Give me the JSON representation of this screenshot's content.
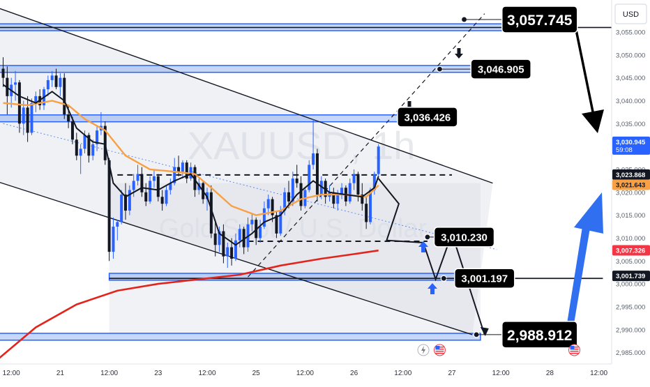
{
  "chart_data": {
    "type": "candlestick",
    "symbol_watermark": "XAUUSD, 1h",
    "instrument_watermark": "Gold Spot / U.S. Dollar",
    "currency": "USD",
    "ylim": [
      2982.5,
      3062.0
    ],
    "y_ticks": [
      2985,
      2990,
      2995,
      3000,
      3005,
      3010,
      3015,
      3020,
      3025,
      3030,
      3035,
      3040,
      3045,
      3050,
      3055
    ],
    "y_tick_labels": [
      "2,985.000",
      "2,990.000",
      "2,995.000",
      "3,000.000",
      "3,005.000",
      "3,010.000",
      "3,015.000",
      "3,020.000",
      "3,025.000",
      "3,030.000",
      "3,035.000",
      "3,040.000",
      "3,045.000",
      "3,050.000",
      "3,055.000"
    ],
    "x_labels": [
      {
        "t": 2,
        "label": "12:00"
      },
      {
        "t": 14,
        "label": "21"
      },
      {
        "t": 26,
        "label": "12:00"
      },
      {
        "t": 38,
        "label": "23"
      },
      {
        "t": 50,
        "label": "12:00"
      },
      {
        "t": 62,
        "label": "25"
      },
      {
        "t": 74,
        "label": "12:00"
      },
      {
        "t": 86,
        "label": "26"
      },
      {
        "t": 98,
        "label": "12:00"
      },
      {
        "t": 110,
        "label": "27"
      },
      {
        "t": 122,
        "label": "12:00"
      },
      {
        "t": 134,
        "label": "28"
      },
      {
        "t": 146,
        "label": "12:00"
      }
    ],
    "candles": [
      [
        0,
        3047.0,
        3049.5,
        3043.0,
        3045.0
      ],
      [
        1,
        3045.0,
        3047.5,
        3037.0,
        3041.0
      ],
      [
        2,
        3041.0,
        3045.0,
        3038.5,
        3043.5
      ],
      [
        3,
        3043.5,
        3046.5,
        3040.0,
        3044.0
      ],
      [
        4,
        3044.0,
        3044.5,
        3033.0,
        3035.0
      ],
      [
        5,
        3035.0,
        3040.0,
        3032.5,
        3038.5
      ],
      [
        6,
        3038.5,
        3041.0,
        3031.0,
        3033.0
      ],
      [
        7,
        3033.0,
        3040.5,
        3032.5,
        3039.5
      ],
      [
        8,
        3039.5,
        3042.0,
        3037.5,
        3041.0
      ],
      [
        9,
        3041.0,
        3042.5,
        3038.0,
        3039.0
      ],
      [
        10,
        3039.0,
        3043.0,
        3038.0,
        3042.5
      ],
      [
        11,
        3042.5,
        3045.5,
        3041.0,
        3044.5
      ],
      [
        12,
        3044.5,
        3046.5,
        3043.0,
        3045.5
      ],
      [
        13,
        3045.5,
        3047.0,
        3042.5,
        3043.0
      ],
      [
        14,
        3043.0,
        3046.0,
        3041.0,
        3045.0
      ],
      [
        15,
        3045.0,
        3046.0,
        3036.0,
        3037.0
      ],
      [
        16,
        3037.0,
        3039.0,
        3034.0,
        3035.5
      ],
      [
        17,
        3035.5,
        3036.5,
        3030.5,
        3031.5
      ],
      [
        18,
        3031.5,
        3033.0,
        3027.0,
        3028.0
      ],
      [
        19,
        3028.0,
        3030.5,
        3024.0,
        3029.5
      ],
      [
        20,
        3029.5,
        3033.5,
        3028.5,
        3032.5
      ],
      [
        21,
        3032.5,
        3033.0,
        3026.5,
        3028.0
      ],
      [
        22,
        3028.0,
        3031.5,
        3027.0,
        3030.5
      ],
      [
        23,
        3030.5,
        3034.5,
        3029.0,
        3033.5
      ],
      [
        24,
        3033.5,
        3037.5,
        3032.5,
        3034.5
      ],
      [
        25,
        3034.5,
        3035.5,
        3026.0,
        3027.0
      ],
      [
        26,
        3027.0,
        3027.5,
        3005.0,
        3007.0
      ],
      [
        27,
        3007.0,
        3014.5,
        3005.5,
        3012.5
      ],
      [
        28,
        3012.5,
        3014.0,
        3009.5,
        3013.5
      ],
      [
        29,
        3013.5,
        3020.5,
        3013.0,
        3019.5
      ],
      [
        30,
        3019.5,
        3022.0,
        3014.0,
        3016.0
      ],
      [
        31,
        3016.0,
        3021.5,
        3015.0,
        3020.5
      ],
      [
        32,
        3020.5,
        3024.0,
        3019.0,
        3022.5
      ],
      [
        33,
        3022.5,
        3026.0,
        3021.5,
        3024.0
      ],
      [
        34,
        3024.0,
        3025.5,
        3019.0,
        3020.0
      ],
      [
        35,
        3020.0,
        3022.0,
        3017.0,
        3018.0
      ],
      [
        36,
        3018.0,
        3023.5,
        3017.5,
        3022.5
      ],
      [
        37,
        3022.5,
        3025.0,
        3021.0,
        3023.5
      ],
      [
        38,
        3023.5,
        3024.0,
        3018.0,
        3019.0
      ],
      [
        39,
        3019.0,
        3020.5,
        3016.0,
        3017.5
      ],
      [
        40,
        3017.5,
        3021.5,
        3017.0,
        3020.5
      ],
      [
        41,
        3020.5,
        3023.0,
        3019.5,
        3022.0
      ],
      [
        42,
        3022.0,
        3027.5,
        3021.5,
        3025.5
      ],
      [
        43,
        3025.5,
        3028.0,
        3023.5,
        3024.5
      ],
      [
        44,
        3024.5,
        3027.0,
        3023.0,
        3026.5
      ],
      [
        45,
        3026.5,
        3027.0,
        3022.0,
        3023.0
      ],
      [
        46,
        3023.0,
        3026.5,
        3022.5,
        3025.5
      ],
      [
        47,
        3025.5,
        3026.0,
        3019.0,
        3020.5
      ],
      [
        48,
        3020.5,
        3023.0,
        3019.5,
        3022.0
      ],
      [
        49,
        3022.0,
        3022.5,
        3017.5,
        3018.5
      ],
      [
        50,
        3018.5,
        3021.0,
        3016.0,
        3020.0
      ],
      [
        51,
        3020.0,
        3021.5,
        3010.0,
        3011.0
      ],
      [
        52,
        3011.0,
        3014.0,
        3006.0,
        3008.5
      ],
      [
        53,
        3008.5,
        3012.5,
        3007.0,
        3011.5
      ],
      [
        54,
        3011.5,
        3013.0,
        3004.5,
        3006.0
      ],
      [
        55,
        3006.0,
        3009.0,
        3003.5,
        3008.0
      ],
      [
        56,
        3008.0,
        3010.0,
        3004.0,
        3005.5
      ],
      [
        57,
        3005.5,
        3011.0,
        3005.0,
        3009.5
      ],
      [
        58,
        3009.5,
        3013.0,
        3008.0,
        3012.0
      ],
      [
        59,
        3012.0,
        3012.5,
        3006.5,
        3008.0
      ],
      [
        60,
        3008.0,
        3014.5,
        3007.0,
        3013.0
      ],
      [
        61,
        3013.0,
        3015.5,
        3011.5,
        3014.0
      ],
      [
        62,
        3014.0,
        3014.5,
        3008.5,
        3010.0
      ],
      [
        63,
        3010.0,
        3014.0,
        3009.0,
        3012.5
      ],
      [
        64,
        3012.5,
        3018.0,
        3012.0,
        3016.5
      ],
      [
        65,
        3016.5,
        3019.5,
        3015.0,
        3018.5
      ],
      [
        66,
        3018.5,
        3019.0,
        3013.5,
        3015.0
      ],
      [
        67,
        3015.0,
        3016.0,
        3010.0,
        3011.0
      ],
      [
        68,
        3011.0,
        3017.0,
        3010.5,
        3016.0
      ],
      [
        69,
        3016.0,
        3021.0,
        3015.0,
        3020.0
      ],
      [
        70,
        3020.0,
        3022.5,
        3016.5,
        3018.0
      ],
      [
        71,
        3018.0,
        3024.5,
        3017.0,
        3023.0
      ],
      [
        72,
        3023.0,
        3026.0,
        3021.0,
        3022.0
      ],
      [
        73,
        3022.0,
        3023.5,
        3016.0,
        3017.0
      ],
      [
        74,
        3017.0,
        3021.0,
        3016.5,
        3020.5
      ],
      [
        75,
        3020.5,
        3027.0,
        3020.0,
        3026.0
      ],
      [
        76,
        3026.0,
        3036.0,
        3025.0,
        3028.5
      ],
      [
        77,
        3028.5,
        3029.5,
        3018.0,
        3019.5
      ],
      [
        78,
        3019.5,
        3023.5,
        3018.5,
        3022.5
      ],
      [
        79,
        3022.5,
        3023.0,
        3017.5,
        3019.0
      ],
      [
        80,
        3019.0,
        3021.5,
        3018.0,
        3020.0
      ],
      [
        81,
        3020.0,
        3021.0,
        3016.5,
        3017.5
      ],
      [
        82,
        3017.5,
        3020.5,
        3016.0,
        3019.5
      ],
      [
        83,
        3019.5,
        3022.0,
        3018.5,
        3021.0
      ],
      [
        84,
        3021.0,
        3021.5,
        3017.0,
        3018.0
      ],
      [
        85,
        3018.0,
        3023.0,
        3017.5,
        3022.0
      ],
      [
        86,
        3022.0,
        3025.0,
        3020.5,
        3024.0
      ],
      [
        87,
        3024.0,
        3024.5,
        3018.0,
        3019.5
      ],
      [
        88,
        3019.5,
        3022.0,
        3016.0,
        3017.5
      ],
      [
        89,
        3017.5,
        3019.0,
        3012.0,
        3013.5
      ],
      [
        90,
        3013.5,
        3021.0,
        3013.0,
        3020.5
      ],
      [
        91,
        3020.5,
        3024.5,
        3019.5,
        3024.0
      ],
      [
        92,
        3024.0,
        3030.5,
        3023.5,
        3030.0
      ]
    ],
    "overlays": {
      "ema_fast": [
        [
          0,
          3043.5
        ],
        [
          4,
          3041.0
        ],
        [
          8,
          3039.5
        ],
        [
          12,
          3042.0
        ],
        [
          15,
          3040.0
        ],
        [
          18,
          3034.0
        ],
        [
          22,
          3031.0
        ],
        [
          25,
          3030.5
        ],
        [
          27,
          3022.0
        ],
        [
          30,
          3019.0
        ],
        [
          34,
          3021.0
        ],
        [
          38,
          3020.5
        ],
        [
          42,
          3022.5
        ],
        [
          46,
          3024.0
        ],
        [
          50,
          3019.0
        ],
        [
          53,
          3011.0
        ],
        [
          57,
          3008.5
        ],
        [
          61,
          3011.0
        ],
        [
          64,
          3013.5
        ],
        [
          68,
          3015.0
        ],
        [
          72,
          3019.5
        ],
        [
          76,
          3022.5
        ],
        [
          80,
          3020.0
        ],
        [
          84,
          3019.5
        ],
        [
          88,
          3019.0
        ],
        [
          91,
          3021.0
        ],
        [
          92,
          3023.5
        ]
      ],
      "ema_slow": [
        [
          0,
          3039.5
        ],
        [
          6,
          3039.0
        ],
        [
          12,
          3040.0
        ],
        [
          16,
          3039.0
        ],
        [
          20,
          3036.0
        ],
        [
          25,
          3033.5
        ],
        [
          30,
          3028.0
        ],
        [
          36,
          3025.0
        ],
        [
          42,
          3024.5
        ],
        [
          47,
          3024.0
        ],
        [
          51,
          3021.0
        ],
        [
          56,
          3017.0
        ],
        [
          62,
          3015.0
        ],
        [
          68,
          3016.0
        ],
        [
          73,
          3018.5
        ],
        [
          78,
          3019.5
        ],
        [
          84,
          3019.5
        ],
        [
          89,
          3019.0
        ],
        [
          92,
          3021.5
        ]
      ],
      "sma_long": [
        [
          -2,
          2983.0
        ],
        [
          8,
          2990.5
        ],
        [
          18,
          2995.5
        ],
        [
          28,
          2998.5
        ],
        [
          38,
          3000.0
        ],
        [
          48,
          3001.0
        ],
        [
          58,
          3002.0
        ],
        [
          68,
          3004.0
        ],
        [
          78,
          3005.5
        ],
        [
          86,
          3006.5
        ],
        [
          92,
          3007.3
        ]
      ],
      "channel_upper": [
        [
          -2,
          3060.5
        ],
        [
          120,
          3022.0
        ]
      ],
      "channel_lower": [
        [
          -2,
          3022.5
        ],
        [
          115,
          2988.9
        ]
      ],
      "dotted_mid": [
        [
          0,
          3035.0
        ],
        [
          121,
          3007.5
        ]
      ],
      "diagonal_dashed": [
        [
          60,
          3001.5
        ],
        [
          118,
          3059.0
        ]
      ],
      "projection_zigzag": [
        [
          92,
          3023.0
        ],
        [
          97,
          3017.5
        ],
        [
          94,
          3009.5
        ],
        [
          103,
          3009.0
        ],
        [
          106,
          3001.0
        ],
        [
          110,
          3011.0
        ],
        [
          118,
          2988.9
        ]
      ],
      "dashed_level_high": {
        "value": 3023.8,
        "from": 28,
        "to": 110
      },
      "dashed_level_low": {
        "value": 3009.3,
        "from": 60,
        "to": 104
      },
      "solid_level": {
        "value": 3001.2,
        "from": 26,
        "to": 147
      }
    },
    "zones": [
      {
        "top": 3056.8,
        "bottom": 3055.3,
        "from": -2,
        "to": 140
      },
      {
        "top": 3047.7,
        "bottom": 3046.2,
        "from": -2,
        "to": 128
      },
      {
        "top": 3036.9,
        "bottom": 3035.4,
        "from": -2,
        "to": 111
      },
      {
        "top": 3002.3,
        "bottom": 3000.8,
        "from": 26,
        "to": 117
      },
      {
        "top": 2989.2,
        "bottom": 2987.7,
        "from": -2,
        "to": 117
      }
    ],
    "shaded_box": {
      "from": 26,
      "to": 117,
      "top": 3022.0,
      "bottom": 2989.0
    },
    "callouts": [
      {
        "label": "3,057.745",
        "value": 3057.745,
        "t": 131.5,
        "size": "large",
        "dot_t": 113
      },
      {
        "label": "3,046.905",
        "value": 3046.905,
        "t": 122,
        "size": "small",
        "dot_t": 107
      },
      {
        "label": "3,036.426",
        "value": 3036.426,
        "t": 104,
        "size": "small",
        "dot_t": 98
      },
      {
        "label": "3,010.230",
        "value": 3010.23,
        "t": 113,
        "size": "small",
        "dot_t": 104
      },
      {
        "label": "3,001.197",
        "value": 3001.197,
        "t": 118,
        "size": "small",
        "dot_t": 108
      },
      {
        "label": "2,988.912",
        "value": 2988.912,
        "t": 131.5,
        "size": "large",
        "dot_t": 116
      }
    ],
    "price_tags": [
      {
        "value": 3030.945,
        "label": "3,030.945",
        "sub": "59:08",
        "bg": "#2962ff",
        "fg": "#ffffff"
      },
      {
        "value": 3023.868,
        "label": "3,023.868",
        "sub": "",
        "bg": "#131722",
        "fg": "#ffffff"
      },
      {
        "value": 3021.643,
        "label": "3,021.643",
        "sub": "",
        "bg": "#f7a044",
        "fg": "#131722"
      },
      {
        "value": 3007.326,
        "label": "3,007.326",
        "sub": "",
        "bg": "#f23645",
        "fg": "#ffffff"
      },
      {
        "value": 3001.739,
        "label": "3,001.739",
        "sub": "",
        "bg": "#131722",
        "fg": "#ffffff"
      }
    ],
    "event_markers_t": [
      103,
      107,
      140
    ],
    "colors": {
      "up": "#2962ff",
      "down": "#131722",
      "ema_fast": "#131722",
      "ema_slow": "#f7a044",
      "sma_long": "#e2241b",
      "zone_fill": "#5b8def",
      "zone_stroke": "#2962ff",
      "channel": "#131722",
      "callout_bg": "#000000",
      "big_arrow": "#2f6ff0",
      "dotted_mid": "#5b8def"
    }
  }
}
